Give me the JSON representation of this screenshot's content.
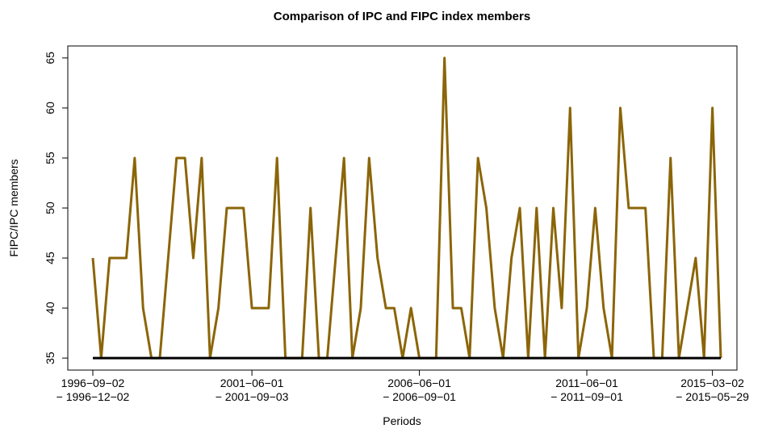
{
  "chart_data": {
    "type": "line",
    "title": "Comparison of IPC and FIPC index members",
    "x_label": "Periods",
    "y_label": "FIPC/IPC members",
    "categories": [
      [
        "1996−09−02",
        "− 1996−12−02"
      ],
      null,
      null,
      null,
      null,
      null,
      null,
      null,
      null,
      null,
      null,
      null,
      null,
      null,
      null,
      null,
      null,
      null,
      null,
      [
        "2001−06−01",
        "− 2001−09−03"
      ],
      null,
      null,
      null,
      null,
      null,
      null,
      null,
      null,
      null,
      null,
      null,
      null,
      null,
      null,
      null,
      null,
      null,
      null,
      null,
      [
        "2006−06−01",
        "− 2006−09−01"
      ],
      null,
      null,
      null,
      null,
      null,
      null,
      null,
      null,
      null,
      null,
      null,
      null,
      null,
      null,
      null,
      null,
      null,
      null,
      null,
      [
        "2011−06−01",
        "− 2011−09−01"
      ],
      null,
      null,
      null,
      null,
      null,
      null,
      null,
      null,
      null,
      null,
      null,
      null,
      null,
      null,
      [
        "2015−03−02",
        "− 2015−05−29"
      ],
      null
    ],
    "series": [
      {
        "color": "#8B6508",
        "values": [
          45,
          35,
          45,
          45,
          45,
          55,
          40,
          35,
          35,
          45,
          55,
          55,
          45,
          55,
          35,
          40,
          50,
          50,
          50,
          40,
          40,
          40,
          55,
          35,
          35,
          35,
          50,
          35,
          35,
          45,
          55,
          35,
          40,
          55,
          45,
          40,
          40,
          35,
          40,
          35,
          35,
          35,
          65,
          40,
          40,
          35,
          55,
          50,
          40,
          35,
          45,
          50,
          35,
          50,
          35,
          50,
          40,
          60,
          35,
          40,
          50,
          40,
          35,
          60,
          50,
          50,
          50,
          35,
          35,
          55,
          35,
          40,
          45,
          35,
          60,
          35
        ]
      },
      {
        "color": "#000000",
        "values": [
          35,
          35,
          35,
          35,
          35,
          35,
          35,
          35,
          35,
          35,
          35,
          35,
          35,
          35,
          35,
          35,
          35,
          35,
          35,
          35,
          35,
          35,
          35,
          35,
          35,
          35,
          35,
          35,
          35,
          35,
          35,
          35,
          35,
          35,
          35,
          35,
          35,
          35,
          35,
          35,
          35,
          35,
          35,
          35,
          35,
          35,
          35,
          35,
          35,
          35,
          35,
          35,
          35,
          35,
          35,
          35,
          35,
          35,
          35,
          35,
          35,
          35,
          35,
          35,
          35,
          35,
          35,
          35,
          35,
          35,
          35,
          35,
          35,
          35,
          35,
          35
        ]
      }
    ],
    "ylim": [
      33.8,
      66.2
    ],
    "yticks": [
      35,
      40,
      45,
      50,
      55,
      60,
      65
    ]
  }
}
